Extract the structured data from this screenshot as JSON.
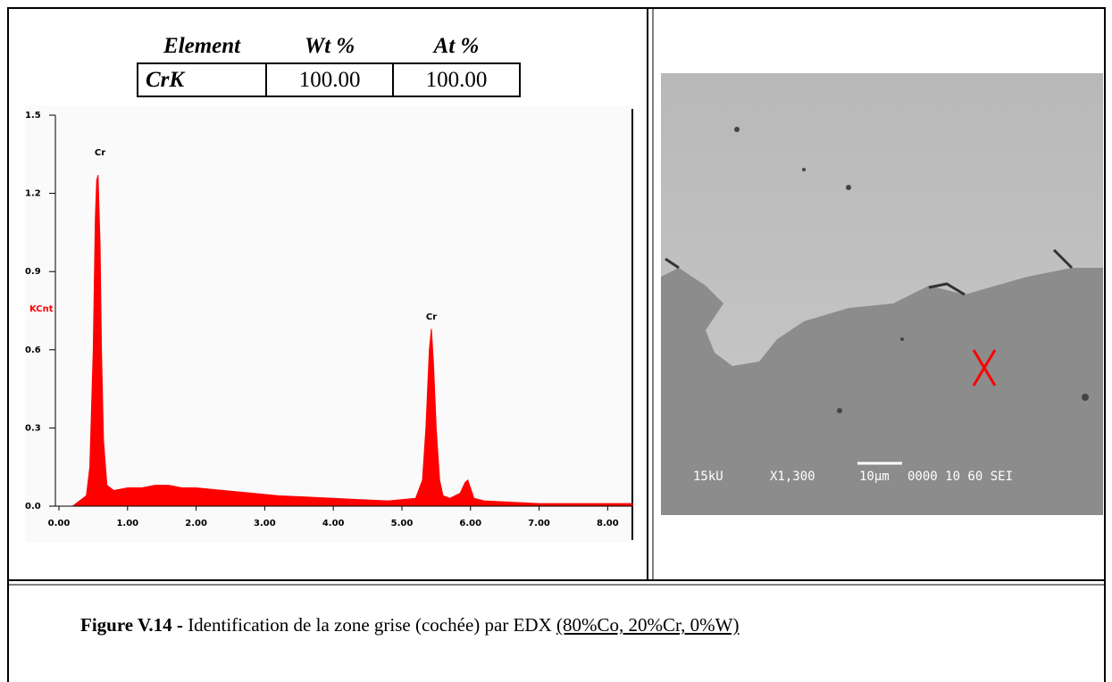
{
  "table": {
    "headers": [
      "Element",
      "Wt %",
      "At %"
    ],
    "rows": [
      [
        "CrK",
        "100.00",
        "100.00"
      ]
    ]
  },
  "chart_data": {
    "type": "area",
    "ylabel": "KCnt",
    "annotations": [
      "Cr",
      "Cr"
    ],
    "color": "#ff0000",
    "x": [
      0.2,
      0.3,
      0.4,
      0.45,
      0.5,
      0.53,
      0.55,
      0.57,
      0.6,
      0.62,
      0.65,
      0.7,
      0.8,
      1.0,
      1.2,
      1.4,
      1.6,
      1.8,
      2.0,
      2.4,
      2.8,
      3.2,
      3.6,
      4.0,
      4.4,
      4.8,
      5.2,
      5.3,
      5.35,
      5.4,
      5.43,
      5.46,
      5.5,
      5.55,
      5.6,
      5.7,
      5.85,
      5.92,
      5.96,
      6.0,
      6.05,
      6.2,
      6.6,
      7.0,
      7.5,
      8.0,
      8.36
    ],
    "values": [
      0,
      0.02,
      0.04,
      0.15,
      0.6,
      1.1,
      1.25,
      1.27,
      1.0,
      0.6,
      0.25,
      0.08,
      0.06,
      0.07,
      0.07,
      0.08,
      0.08,
      0.07,
      0.07,
      0.06,
      0.05,
      0.04,
      0.035,
      0.03,
      0.025,
      0.02,
      0.03,
      0.1,
      0.3,
      0.6,
      0.68,
      0.55,
      0.3,
      0.1,
      0.04,
      0.03,
      0.05,
      0.09,
      0.1,
      0.07,
      0.03,
      0.02,
      0.015,
      0.01,
      0.01,
      0.01,
      0.01
    ],
    "xlim": [
      0,
      8.36
    ],
    "ylim": [
      0,
      1.5
    ],
    "xticks": [
      {
        "value": 0,
        "label": "0.00"
      },
      {
        "value": 1,
        "label": "1.00"
      },
      {
        "value": 2,
        "label": "2.00"
      },
      {
        "value": 3,
        "label": "3.00"
      },
      {
        "value": 4,
        "label": "4.00"
      },
      {
        "value": 5,
        "label": "5.00"
      },
      {
        "value": 6,
        "label": "6.00"
      },
      {
        "value": 7,
        "label": "7.00"
      },
      {
        "value": 8,
        "label": "8.00"
      }
    ],
    "yticks": [
      {
        "value": 0,
        "label": "0.0"
      },
      0.3,
      0.6,
      0.9,
      1.2,
      1.5
    ]
  },
  "image": {
    "overlay": [
      "15kU",
      "X1,300",
      "10µm",
      "0000 10 60 SEI"
    ]
  },
  "caption": {
    "label": "Figure V.14 -",
    "text": "Identification de la zone grise (cochée) par EDX",
    "note": "(80%Co, 20%Cr, 0%W)"
  }
}
